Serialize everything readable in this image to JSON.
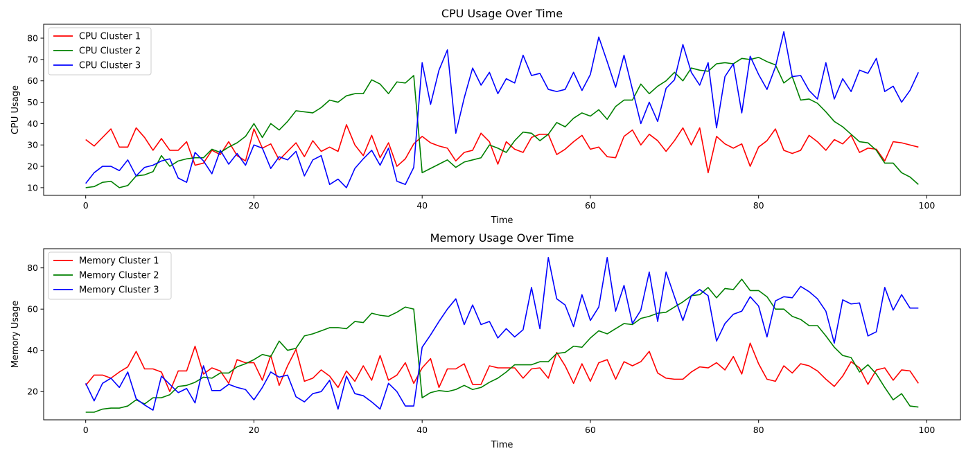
{
  "chart_data": [
    {
      "type": "line",
      "title": "CPU Usage Over Time",
      "xlabel": "Time",
      "ylabel": "CPU Usage",
      "xlim": [
        -5,
        104
      ],
      "ylim": [
        6.4,
        86.5
      ],
      "xticks": [
        0,
        20,
        40,
        60,
        80,
        100
      ],
      "yticks": [
        10,
        20,
        30,
        40,
        50,
        60,
        70,
        80
      ],
      "grid": false,
      "legend_position": "top-left",
      "x": [
        0,
        1,
        2,
        3,
        4,
        5,
        6,
        7,
        8,
        9,
        10,
        11,
        12,
        13,
        14,
        15,
        16,
        17,
        18,
        19,
        20,
        21,
        22,
        23,
        24,
        25,
        26,
        27,
        28,
        29,
        30,
        31,
        32,
        33,
        34,
        35,
        36,
        37,
        38,
        39,
        40,
        41,
        42,
        43,
        44,
        45,
        46,
        47,
        48,
        49,
        50,
        51,
        52,
        53,
        54,
        55,
        56,
        57,
        58,
        59,
        60,
        61,
        62,
        63,
        64,
        65,
        66,
        67,
        68,
        69,
        70,
        71,
        72,
        73,
        74,
        75,
        76,
        77,
        78,
        79,
        80,
        81,
        82,
        83,
        84,
        85,
        86,
        87,
        88,
        89,
        90,
        91,
        92,
        93,
        94,
        95,
        96,
        97,
        98,
        99
      ],
      "series": [
        {
          "name": "CPU Cluster 1",
          "color": "#ff0000",
          "values": [
            32.5,
            29.5,
            33.5,
            37.5,
            29.0,
            29.0,
            38.0,
            33.5,
            27.5,
            33.0,
            27.5,
            27.5,
            31.5,
            20.5,
            21.5,
            27.5,
            25.5,
            31.5,
            25.0,
            22.5,
            37.5,
            28.5,
            30.5,
            23.0,
            27.0,
            31.0,
            24.5,
            32.0,
            27.0,
            29.0,
            27.0,
            39.5,
            30.0,
            25.0,
            34.5,
            24.0,
            31.0,
            20.0,
            23.5,
            30.5,
            34.0,
            31.0,
            29.5,
            28.5,
            22.5,
            26.5,
            27.5,
            35.5,
            31.5,
            21.0,
            31.5,
            28.0,
            26.5,
            33.5,
            35.0,
            35.0,
            25.5,
            28.0,
            31.5,
            34.5,
            28.0,
            29.0,
            24.5,
            24.0,
            34.0,
            37.0,
            30.0,
            35.0,
            32.0,
            27.0,
            32.0,
            38.0,
            30.0,
            38.0,
            17.0,
            34.0,
            30.5,
            28.5,
            30.5,
            20.0,
            29.0,
            32.0,
            37.5,
            27.5,
            26.0,
            27.5,
            34.5,
            31.5,
            27.5,
            32.5,
            30.5,
            34.5,
            26.5,
            28.5,
            28.0,
            22.5,
            31.5,
            31.0,
            30.0,
            29.0
          ]
        },
        {
          "name": "CPU Cluster 2",
          "color": "#008000",
          "values": [
            10.0,
            10.5,
            12.5,
            13.0,
            10.0,
            11.0,
            15.5,
            16.0,
            17.5,
            25.0,
            20.0,
            22.5,
            23.5,
            24.0,
            24.0,
            28.0,
            26.5,
            29.0,
            31.0,
            34.0,
            40.0,
            33.5,
            40.0,
            37.0,
            41.0,
            46.0,
            45.5,
            45.0,
            47.5,
            51.0,
            50.0,
            53.0,
            54.0,
            54.0,
            60.5,
            58.5,
            54.0,
            59.5,
            59.0,
            62.5,
            17.0,
            19.0,
            21.0,
            23.0,
            19.5,
            22.0,
            23.0,
            24.0,
            30.0,
            28.5,
            26.5,
            32.0,
            36.0,
            35.5,
            32.0,
            35.0,
            40.5,
            38.5,
            42.5,
            45.0,
            43.5,
            46.5,
            42.0,
            48.0,
            51.0,
            51.0,
            58.5,
            54.0,
            57.5,
            60.0,
            64.0,
            60.0,
            66.0,
            65.0,
            64.5,
            68.0,
            68.5,
            68.0,
            70.5,
            70.0,
            71.0,
            69.0,
            67.5,
            59.0,
            62.0,
            51.0,
            51.5,
            49.5,
            45.5,
            41.0,
            38.5,
            35.0,
            31.5,
            31.0,
            27.5,
            21.5,
            21.5,
            17.0,
            15.0,
            11.5
          ]
        },
        {
          "name": "CPU Cluster 3",
          "color": "#0000ff",
          "values": [
            12.0,
            17.0,
            20.0,
            20.0,
            18.0,
            23.0,
            15.5,
            19.5,
            20.5,
            22.5,
            23.5,
            14.5,
            12.5,
            26.5,
            22.5,
            16.5,
            27.5,
            21.0,
            26.0,
            20.5,
            30.0,
            28.5,
            19.0,
            24.5,
            23.0,
            27.0,
            15.5,
            23.0,
            25.0,
            11.5,
            14.0,
            10.0,
            19.0,
            23.5,
            27.5,
            20.5,
            28.5,
            13.0,
            11.5,
            19.5,
            68.5,
            49.0,
            65.0,
            74.5,
            35.5,
            52.0,
            66.0,
            58.0,
            64.0,
            54.0,
            61.0,
            59.0,
            72.0,
            62.5,
            63.5,
            56.0,
            55.0,
            56.0,
            64.0,
            55.5,
            63.0,
            80.5,
            69.0,
            57.0,
            72.0,
            56.0,
            40.0,
            50.0,
            41.0,
            56.5,
            60.5,
            77.0,
            64.0,
            58.0,
            68.5,
            38.0,
            62.0,
            68.0,
            45.0,
            71.5,
            63.0,
            56.0,
            66.5,
            83.0,
            62.0,
            62.5,
            55.5,
            51.5,
            68.5,
            51.5,
            61.0,
            55.0,
            65.0,
            63.5,
            70.5,
            55.0,
            57.5,
            50.0,
            55.5,
            64.0
          ]
        }
      ]
    },
    {
      "type": "line",
      "title": "Memory Usage Over Time",
      "xlabel": "Time",
      "ylabel": "Memory Usage",
      "xlim": [
        -5,
        104
      ],
      "ylim": [
        6.3,
        89.3
      ],
      "xticks": [
        0,
        20,
        40,
        60,
        80,
        100
      ],
      "yticks": [
        20,
        40,
        60,
        80
      ],
      "grid": false,
      "legend_position": "top-left",
      "x": [
        0,
        1,
        2,
        3,
        4,
        5,
        6,
        7,
        8,
        9,
        10,
        11,
        12,
        13,
        14,
        15,
        16,
        17,
        18,
        19,
        20,
        21,
        22,
        23,
        24,
        25,
        26,
        27,
        28,
        29,
        30,
        31,
        32,
        33,
        34,
        35,
        36,
        37,
        38,
        39,
        40,
        41,
        42,
        43,
        44,
        45,
        46,
        47,
        48,
        49,
        50,
        51,
        52,
        53,
        54,
        55,
        56,
        57,
        58,
        59,
        60,
        61,
        62,
        63,
        64,
        65,
        66,
        67,
        68,
        69,
        70,
        71,
        72,
        73,
        74,
        75,
        76,
        77,
        78,
        79,
        80,
        81,
        82,
        83,
        84,
        85,
        86,
        87,
        88,
        89,
        90,
        91,
        92,
        93,
        94,
        95,
        96,
        97,
        98,
        99
      ],
      "series": [
        {
          "name": "Memory Cluster 1",
          "color": "#ff0000",
          "values": [
            23.0,
            28.0,
            28.0,
            26.5,
            29.5,
            32.0,
            39.5,
            31.0,
            31.0,
            29.5,
            20.0,
            30.0,
            30.0,
            42.0,
            28.5,
            31.5,
            30.0,
            24.0,
            35.5,
            34.0,
            34.0,
            25.5,
            37.5,
            23.0,
            32.5,
            40.5,
            25.0,
            26.5,
            30.5,
            27.5,
            22.0,
            30.0,
            25.0,
            32.5,
            25.5,
            37.5,
            25.5,
            28.0,
            34.0,
            24.0,
            31.5,
            36.0,
            22.0,
            31.0,
            31.0,
            33.5,
            23.5,
            23.5,
            32.5,
            31.5,
            31.5,
            31.5,
            26.5,
            31.0,
            31.5,
            26.5,
            39.0,
            32.5,
            24.0,
            33.5,
            25.0,
            34.0,
            35.5,
            26.0,
            34.5,
            32.5,
            34.5,
            39.5,
            29.0,
            26.5,
            26.0,
            26.0,
            29.5,
            32.0,
            31.5,
            34.0,
            30.5,
            37.0,
            28.5,
            43.5,
            33.5,
            26.0,
            25.0,
            32.5,
            29.0,
            33.5,
            32.5,
            30.0,
            26.0,
            22.5,
            27.5,
            34.5,
            31.5,
            23.5,
            30.5,
            31.5,
            25.5,
            30.5,
            30.0,
            24.0
          ]
        },
        {
          "name": "Memory Cluster 2",
          "color": "#008000",
          "values": [
            10.0,
            10.0,
            11.5,
            12.0,
            12.0,
            13.0,
            16.0,
            14.0,
            17.0,
            17.0,
            18.5,
            22.5,
            23.0,
            24.5,
            27.0,
            26.5,
            29.0,
            29.0,
            32.0,
            33.5,
            35.5,
            38.0,
            37.0,
            44.5,
            40.0,
            41.0,
            47.0,
            48.0,
            49.5,
            51.0,
            51.0,
            50.5,
            54.0,
            53.5,
            58.0,
            57.0,
            56.5,
            58.5,
            61.0,
            60.0,
            17.0,
            19.5,
            20.5,
            20.0,
            21.0,
            23.0,
            21.0,
            22.0,
            24.5,
            26.5,
            29.5,
            33.0,
            33.0,
            33.0,
            34.5,
            34.5,
            38.5,
            39.0,
            42.0,
            41.5,
            46.0,
            49.5,
            48.0,
            50.5,
            53.0,
            52.5,
            55.5,
            56.5,
            58.0,
            58.5,
            61.0,
            63.5,
            66.5,
            67.0,
            70.5,
            65.5,
            70.0,
            69.5,
            74.5,
            69.0,
            69.0,
            66.0,
            60.0,
            60.0,
            56.5,
            55.0,
            52.0,
            52.0,
            47.0,
            41.5,
            37.5,
            36.5,
            29.5,
            33.0,
            28.5,
            22.0,
            16.0,
            19.0,
            13.0,
            12.5
          ]
        },
        {
          "name": "Memory Cluster 3",
          "color": "#0000ff",
          "values": [
            24.0,
            15.5,
            24.0,
            26.5,
            22.0,
            29.5,
            16.5,
            13.5,
            11.0,
            27.5,
            23.5,
            19.5,
            21.5,
            14.5,
            32.5,
            20.5,
            20.5,
            23.5,
            22.0,
            21.0,
            16.0,
            22.0,
            29.5,
            27.0,
            28.0,
            17.5,
            15.0,
            19.0,
            20.0,
            25.5,
            11.5,
            27.5,
            19.0,
            18.0,
            15.0,
            11.5,
            24.0,
            20.0,
            13.0,
            13.0,
            41.5,
            47.5,
            54.0,
            60.0,
            65.0,
            52.5,
            62.0,
            52.5,
            54.0,
            46.0,
            50.5,
            46.5,
            50.0,
            70.5,
            50.5,
            85.0,
            65.0,
            62.0,
            51.5,
            67.0,
            54.5,
            61.0,
            85.0,
            59.0,
            71.5,
            53.0,
            59.5,
            78.0,
            54.0,
            78.0,
            66.0,
            54.5,
            66.5,
            69.5,
            66.5,
            44.5,
            53.0,
            57.5,
            59.0,
            66.0,
            61.5,
            46.5,
            64.0,
            66.0,
            65.5,
            71.0,
            68.5,
            65.0,
            59.0,
            43.5,
            64.5,
            62.5,
            63.0,
            47.0,
            49.0,
            70.5,
            59.5,
            67.0,
            60.5,
            60.5
          ]
        }
      ]
    }
  ]
}
